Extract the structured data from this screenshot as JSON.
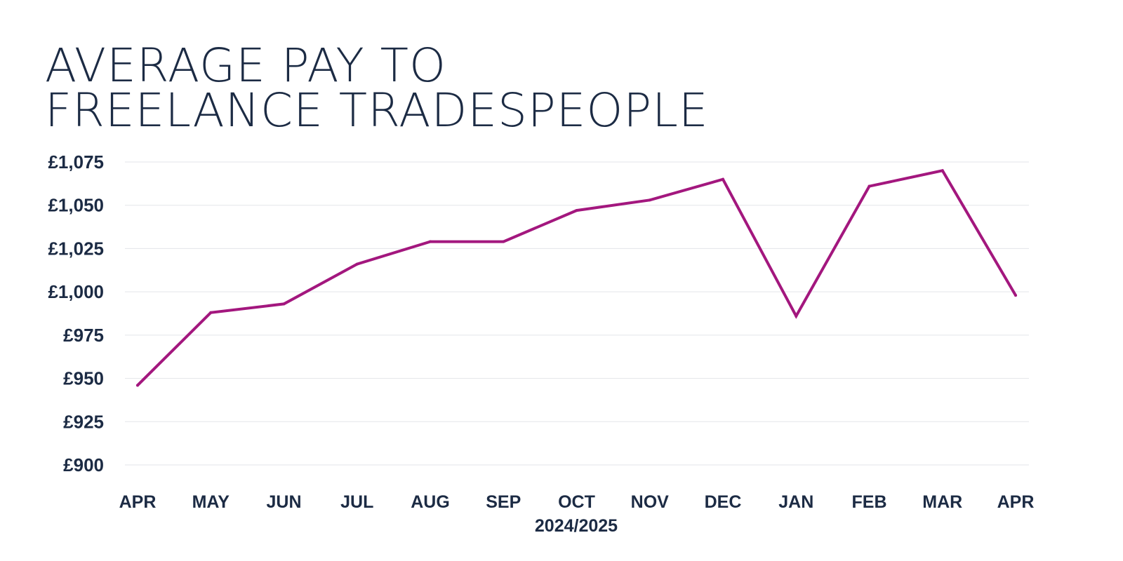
{
  "chart_data": {
    "type": "line",
    "title_lines": [
      "AVERAGE PAY TO",
      "FREELANCE TRADESPEOPLE"
    ],
    "xlabel": "2024/2025",
    "ylabel": "",
    "categories": [
      "APR",
      "MAY",
      "JUN",
      "JUL",
      "AUG",
      "SEP",
      "OCT",
      "NOV",
      "DEC",
      "JAN",
      "FEB",
      "MAR",
      "APR"
    ],
    "series": [
      {
        "values": [
          946,
          988,
          993,
          1016,
          1029,
          1029,
          1047,
          1053,
          1065,
          986,
          1061,
          1070,
          998
        ]
      }
    ],
    "ylim": [
      900,
      1075
    ],
    "yticks": [
      900,
      925,
      950,
      975,
      1000,
      1025,
      1050,
      1075
    ],
    "ytick_labels": [
      "£900",
      "£925",
      "£950",
      "£975",
      "£1,000",
      "£1,025",
      "£1,050",
      "£1,075"
    ],
    "grid": true,
    "legend": "none",
    "colors": {
      "line": "#a3177e",
      "text": "#1c2b44",
      "grid": "#e3e5e9"
    }
  }
}
